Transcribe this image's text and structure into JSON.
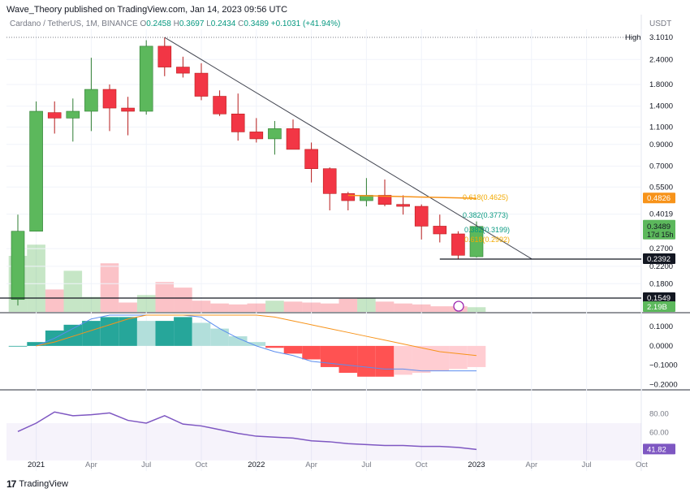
{
  "header": {
    "publisher": "Wave_Theory published on TradingView.com, Jan 14, 2023 09:56 UTC"
  },
  "symbol": {
    "name": "Cardano / TetherUS, 1M, BINANCE",
    "o_label": "O",
    "o": "0.2458",
    "h_label": "H",
    "h": "0.3697",
    "l_label": "L",
    "l": "0.2434",
    "c_label": "C",
    "c": "0.3489",
    "change": "+0.1031 (+41.94%)"
  },
  "price_axis_unit": "USDT",
  "footer": {
    "brand": "TradingView"
  },
  "colors": {
    "up": "#089981",
    "up_body": "#5cb85c",
    "down": "#f23645",
    "ma": "#f7931a",
    "macd_line": "#5b8def",
    "rsi": "#7e57c2"
  },
  "chart_data": [
    {
      "type": "candlestick",
      "title": "",
      "x_tick_labels": [
        "2021",
        "Apr",
        "Jul",
        "Oct",
        "2022",
        "Apr",
        "Jul",
        "Oct",
        "2023",
        "Apr",
        "Jul",
        "Oct"
      ],
      "y_axis": "log",
      "y_tick_labels": [
        "2.4000",
        "1.8000",
        "1.4000",
        "1.1000",
        "0.9000",
        "0.7000",
        "0.5500",
        "0.4019",
        "0.2700",
        "0.2200",
        "0.1800"
      ],
      "months": [
        "2020-12",
        "2021-01",
        "2021-02",
        "2021-03",
        "2021-04",
        "2021-05",
        "2021-06",
        "2021-07",
        "2021-08",
        "2021-09",
        "2021-10",
        "2021-11",
        "2021-12",
        "2022-01",
        "2022-02",
        "2022-03",
        "2022-04",
        "2022-05",
        "2022-06",
        "2022-07",
        "2022-08",
        "2022-09",
        "2022-10",
        "2022-11",
        "2022-12",
        "2023-01"
      ],
      "candles": [
        {
          "o": 0.15,
          "h": 0.4,
          "l": 0.14,
          "c": 0.33
        },
        {
          "o": 0.33,
          "h": 1.48,
          "l": 0.33,
          "c": 1.32
        },
        {
          "o": 1.3,
          "h": 1.48,
          "l": 1.02,
          "c": 1.22
        },
        {
          "o": 1.22,
          "h": 1.53,
          "l": 0.93,
          "c": 1.32
        },
        {
          "o": 1.32,
          "h": 2.45,
          "l": 1.05,
          "c": 1.7
        },
        {
          "o": 1.7,
          "h": 1.8,
          "l": 1.05,
          "c": 1.37
        },
        {
          "o": 1.37,
          "h": 1.56,
          "l": 1.0,
          "c": 1.32
        },
        {
          "o": 1.32,
          "h": 3.0,
          "l": 1.27,
          "c": 2.8
        },
        {
          "o": 2.8,
          "h": 3.1,
          "l": 1.98,
          "c": 2.2
        },
        {
          "o": 2.2,
          "h": 2.48,
          "l": 1.95,
          "c": 2.05
        },
        {
          "o": 2.05,
          "h": 2.3,
          "l": 1.5,
          "c": 1.57
        },
        {
          "o": 1.57,
          "h": 1.68,
          "l": 1.25,
          "c": 1.28
        },
        {
          "o": 1.28,
          "h": 1.62,
          "l": 0.94,
          "c": 1.04
        },
        {
          "o": 1.04,
          "h": 1.22,
          "l": 0.92,
          "c": 0.96
        },
        {
          "o": 0.96,
          "h": 1.18,
          "l": 0.8,
          "c": 1.08
        },
        {
          "o": 1.08,
          "h": 1.2,
          "l": 0.86,
          "c": 0.85
        },
        {
          "o": 0.85,
          "h": 0.92,
          "l": 0.58,
          "c": 0.68
        },
        {
          "o": 0.68,
          "h": 0.69,
          "l": 0.42,
          "c": 0.51
        },
        {
          "o": 0.51,
          "h": 0.52,
          "l": 0.42,
          "c": 0.47
        },
        {
          "o": 0.47,
          "h": 0.61,
          "l": 0.44,
          "c": 0.5
        },
        {
          "o": 0.5,
          "h": 0.6,
          "l": 0.44,
          "c": 0.45
        },
        {
          "o": 0.45,
          "h": 0.5,
          "l": 0.4,
          "c": 0.44
        },
        {
          "o": 0.44,
          "h": 0.45,
          "l": 0.3,
          "c": 0.35
        },
        {
          "o": 0.35,
          "h": 0.4,
          "l": 0.29,
          "c": 0.32
        },
        {
          "o": 0.32,
          "h": 0.33,
          "l": 0.24,
          "c": 0.25
        },
        {
          "o": 0.2458,
          "h": 0.3697,
          "l": 0.2434,
          "c": 0.3489
        }
      ],
      "price_labels": {
        "high_label": "High",
        "high_value": "3.1010",
        "ma_value": "0.4826",
        "last_value": "0.3489",
        "countdown": "17d 15h",
        "support_value": "0.2392",
        "lower_support_value": "0.1549",
        "volume_value": "2.19B"
      },
      "fib_labels": {
        "f618_top": "0.618(0.4625)",
        "f382_top": "0.382(0.3773)",
        "f382_bottom": "0.382(0.3199)",
        "f618_bottom": "0.618(0.2992)"
      },
      "trendline": {
        "from": {
          "month": "2021-08",
          "value": 3.1
        },
        "to": {
          "month": "2023-04",
          "value": 0.24
        }
      },
      "moving_average": [
        {
          "month": "2022-06",
          "value": 0.5
        },
        {
          "month": "2022-08",
          "value": 0.495
        },
        {
          "month": "2022-10",
          "value": 0.49
        },
        {
          "month": "2022-12",
          "value": 0.485
        },
        {
          "month": "2023-01",
          "value": 0.4826
        }
      ],
      "horizontal_lines": [
        0.2392,
        0.1549
      ]
    },
    {
      "type": "bar",
      "name": "",
      "values": [
        3.0,
        3.6,
        1.2,
        2.2,
        0.8,
        2.6,
        0.5,
        0.9,
        1.6,
        1.3,
        0.6,
        0.45,
        0.4,
        0.45,
        0.6,
        0.55,
        0.5,
        0.45,
        0.7,
        0.75,
        0.55,
        0.45,
        0.4,
        0.3,
        0.3,
        0.25
      ]
    },
    {
      "type": "bar",
      "name": "",
      "y_tick_labels": [
        "0.1000",
        "0.0000",
        "−0.1000",
        "−0.2000"
      ],
      "ylim": [
        -0.22,
        0.16
      ],
      "histogram": [
        0.0,
        0.02,
        0.08,
        0.11,
        0.13,
        0.15,
        0.15,
        0.13,
        0.13,
        0.15,
        0.12,
        0.09,
        0.05,
        0.02,
        -0.01,
        -0.04,
        -0.07,
        -0.11,
        -0.14,
        -0.16,
        -0.16,
        -0.15,
        -0.14,
        -0.13,
        -0.12,
        -0.11
      ],
      "macd_line": [
        null,
        0.0,
        0.04,
        0.09,
        0.14,
        0.17,
        0.18,
        0.2,
        0.22,
        0.2,
        0.15,
        0.09,
        0.04,
        0.0,
        -0.03,
        -0.05,
        -0.08,
        -0.09,
        -0.1,
        -0.11,
        -0.12,
        -0.12,
        -0.13,
        -0.13,
        -0.13,
        -0.13
      ],
      "signal_line": [
        null,
        0.0,
        0.02,
        0.05,
        0.08,
        0.11,
        0.14,
        0.16,
        0.18,
        0.19,
        0.19,
        0.18,
        0.17,
        0.16,
        0.15,
        0.13,
        0.11,
        0.09,
        0.07,
        0.05,
        0.03,
        0.01,
        -0.01,
        -0.03,
        -0.04,
        -0.05
      ]
    },
    {
      "type": "line",
      "name": "",
      "y_tick_labels": [
        "80.00",
        "60.00"
      ],
      "ylim": [
        36,
        104
      ],
      "last_value": "41.82",
      "values": [
        61,
        70,
        82,
        78,
        79,
        81,
        73,
        70,
        78,
        69,
        67,
        63,
        59,
        56,
        55,
        54,
        51,
        50,
        48,
        47,
        46,
        46,
        45,
        45,
        44,
        41.82
      ]
    }
  ]
}
